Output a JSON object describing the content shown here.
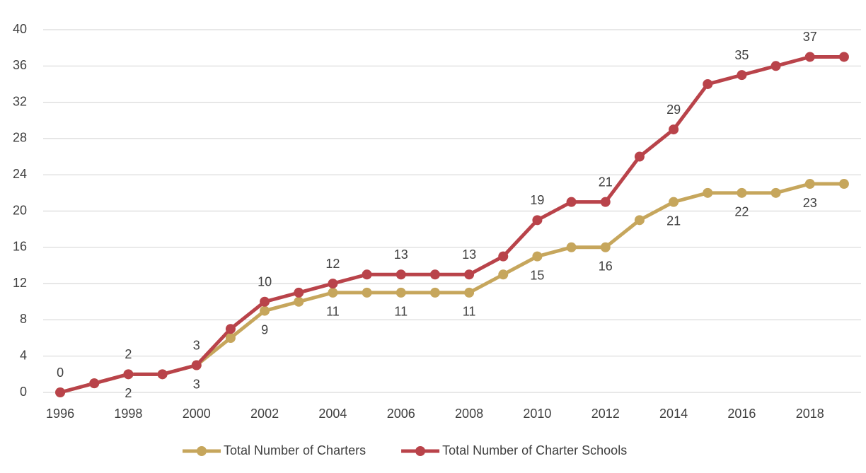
{
  "chart_data": {
    "type": "line",
    "x": [
      1996,
      1997,
      1998,
      1999,
      2000,
      2001,
      2002,
      2003,
      2004,
      2005,
      2006,
      2007,
      2008,
      2009,
      2010,
      2011,
      2012,
      2013,
      2014,
      2015,
      2016,
      2017,
      2018,
      2019
    ],
    "series": [
      {
        "name": "Total Number of Charters",
        "color": "#c6a65c",
        "label_position": "below",
        "values": [
          0,
          1,
          2,
          2,
          3,
          6,
          9,
          10,
          11,
          11,
          11,
          11,
          11,
          13,
          15,
          16,
          16,
          19,
          21,
          22,
          22,
          22,
          23,
          23
        ],
        "value_labels": [
          null,
          null,
          "2",
          null,
          "3",
          null,
          "9",
          null,
          "11",
          null,
          "11",
          null,
          "11",
          null,
          "15",
          null,
          "16",
          null,
          "21",
          null,
          "22",
          null,
          "23",
          null
        ]
      },
      {
        "name": "Total Number of Charter Schools",
        "color": "#b9434a",
        "label_position": "above",
        "values": [
          0,
          1,
          2,
          2,
          3,
          7,
          10,
          11,
          12,
          13,
          13,
          13,
          13,
          15,
          19,
          21,
          21,
          26,
          29,
          34,
          35,
          36,
          37,
          37
        ],
        "value_labels": [
          "0",
          null,
          "2",
          null,
          "3",
          null,
          "10",
          null,
          "12",
          null,
          "13",
          null,
          "13",
          null,
          "19",
          null,
          "21",
          null,
          "29",
          null,
          "35",
          null,
          "37",
          null
        ]
      }
    ],
    "xlim": [
      1995.5,
      2019.5
    ],
    "xticks": [
      1996,
      1998,
      2000,
      2002,
      2004,
      2006,
      2008,
      2010,
      2012,
      2014,
      2016,
      2018
    ],
    "ylim": [
      0,
      40
    ],
    "yticks": [
      0,
      4,
      8,
      12,
      16,
      20,
      24,
      28,
      32,
      36,
      40
    ],
    "grid": true,
    "legend": "bottom"
  }
}
